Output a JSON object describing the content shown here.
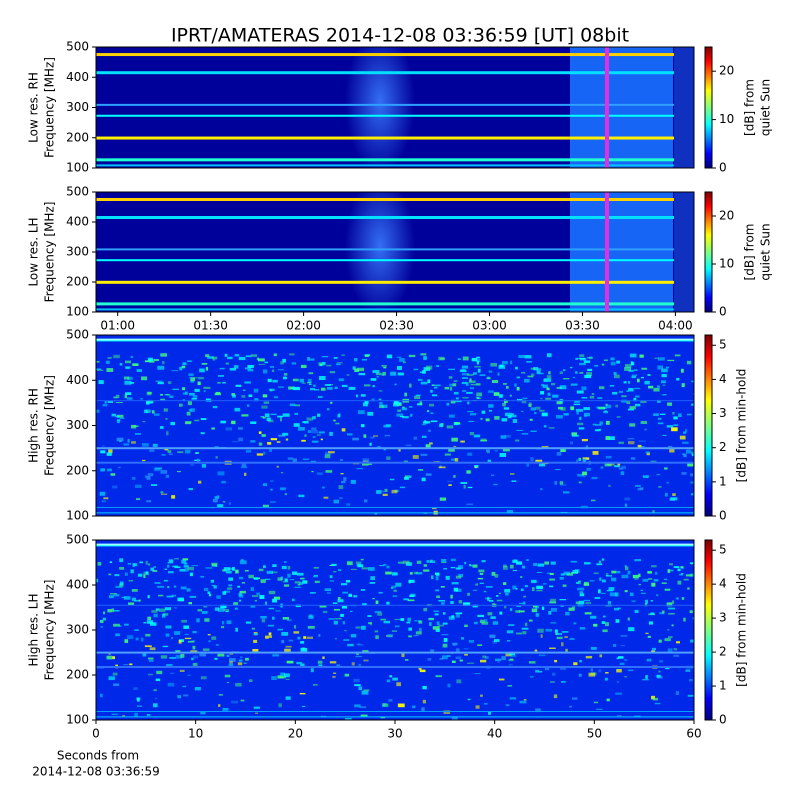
{
  "title": "IPRT/AMATERAS 2014-12-08 03:36:59 [UT]   08bit",
  "xlabel": [
    "Seconds from",
    "2014-12-08 03:36:59"
  ],
  "chart_data": [
    {
      "type": "heatmap",
      "ylabel": [
        "Low res. RH",
        "Frequency [MHz]"
      ],
      "ylim": [
        100,
        500
      ],
      "yticks": [
        100,
        200,
        300,
        400,
        500
      ],
      "xlim": [
        53,
        246
      ],
      "colorbar_label": [
        "[dB] from",
        "quiet Sun"
      ],
      "clim": [
        0,
        25
      ],
      "cticks": [
        0,
        10,
        20
      ]
    },
    {
      "type": "heatmap",
      "ylabel": [
        "Low res. LH",
        "Frequency [MHz]"
      ],
      "ylim": [
        100,
        500
      ],
      "yticks": [
        100,
        200,
        300,
        400,
        500
      ],
      "xlim": [
        53,
        246
      ],
      "xticks": [
        {
          "value": 60,
          "label": "01:00"
        },
        {
          "value": 90,
          "label": "01:30"
        },
        {
          "value": 120,
          "label": "02:00"
        },
        {
          "value": 150,
          "label": "02:30"
        },
        {
          "value": 180,
          "label": "03:00"
        },
        {
          "value": 210,
          "label": "03:30"
        },
        {
          "value": 240,
          "label": "04:00"
        }
      ],
      "colorbar_label": [
        "[dB] from",
        "quiet Sun"
      ],
      "clim": [
        0,
        25
      ],
      "cticks": [
        0,
        10,
        20
      ]
    },
    {
      "type": "heatmap",
      "ylabel": [
        "High res. RH",
        "Frequency [MHz]"
      ],
      "ylim": [
        100,
        500
      ],
      "yticks": [
        100,
        200,
        300,
        400,
        500
      ],
      "xlim": [
        0,
        60
      ],
      "colorbar_label": [
        "[dB] from min-hold"
      ],
      "clim": [
        0,
        5.3
      ],
      "cticks": [
        0,
        1,
        2,
        3,
        4,
        5
      ]
    },
    {
      "type": "heatmap",
      "ylabel": [
        "High res. LH",
        "Frequency [MHz]"
      ],
      "ylim": [
        100,
        500
      ],
      "yticks": [
        100,
        200,
        300,
        400,
        500
      ],
      "xlim": [
        0,
        60
      ],
      "xticks": [
        0,
        10,
        20,
        30,
        40,
        50,
        60
      ],
      "colorbar_label": [
        "[dB] from min-hold"
      ],
      "clim": [
        0,
        5.3
      ],
      "cticks": [
        0,
        1,
        2,
        3,
        4,
        5
      ]
    }
  ]
}
